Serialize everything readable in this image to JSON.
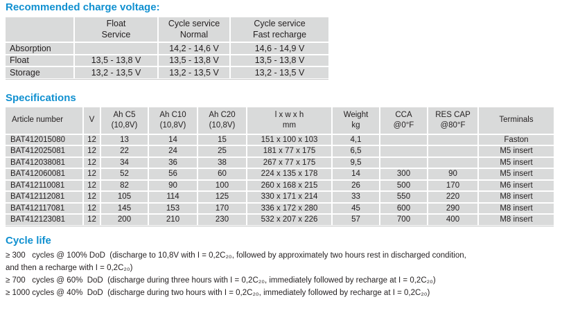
{
  "colors": {
    "accent_blue": "#1090d0",
    "table_cell_gray": "#d9dada",
    "text_ink": "#221e1f"
  },
  "charge_voltage": {
    "title": "Recommended charge voltage:",
    "headers": [
      "",
      "Float\nService",
      "Cycle service\nNormal",
      "Cycle service\nFast recharge"
    ],
    "rows": [
      [
        "Absorption",
        "",
        "14,2 - 14,6 V",
        "14,6 - 14,9 V"
      ],
      [
        "Float",
        "13,5 - 13,8 V",
        "13,5 - 13,8 V",
        "13,5 - 13,8 V"
      ],
      [
        "Storage",
        "13,2 - 13,5 V",
        "13,2 - 13,5 V",
        "13,2 - 13,5 V"
      ]
    ]
  },
  "specifications": {
    "title": "Specifications",
    "headers": [
      "Article number",
      "V",
      "Ah C5\n(10,8V)",
      "Ah C10\n(10,8V)",
      "Ah C20\n(10,8V)",
      "l x w x h\nmm",
      "Weight\nkg",
      "CCA\n@0°F",
      "RES CAP\n@80°F",
      "Terminals"
    ],
    "rows": [
      [
        "BAT412015080",
        "12",
        "13",
        "14",
        "15",
        "151 x 100 x 103",
        "4,1",
        "",
        "",
        "Faston"
      ],
      [
        "BAT412025081",
        "12",
        "22",
        "24",
        "25",
        "181 x 77 x 175",
        "6,5",
        "",
        "",
        "M5 insert"
      ],
      [
        "BAT412038081",
        "12",
        "34",
        "36",
        "38",
        "267 x 77 x 175",
        "9,5",
        "",
        "",
        "M5 insert"
      ],
      [
        "BAT412060081",
        "12",
        "52",
        "56",
        "60",
        "224 x 135 x 178",
        "14",
        "300",
        "90",
        "M5 insert"
      ],
      [
        "BAT412110081",
        "12",
        "82",
        "90",
        "100",
        "260 x 168 x 215",
        "26",
        "500",
        "170",
        "M6 insert"
      ],
      [
        "BAT412112081",
        "12",
        "105",
        "114",
        "125",
        "330 x 171 x 214",
        "33",
        "550",
        "220",
        "M8 insert"
      ],
      [
        "BAT412117081",
        "12",
        "145",
        "153",
        "170",
        "336 x 172 x 280",
        "45",
        "600",
        "290",
        "M8 insert"
      ],
      [
        "BAT412123081",
        "12",
        "200",
        "210",
        "230",
        "532 x 207 x 226",
        "57",
        "700",
        "400",
        "M8 insert"
      ]
    ]
  },
  "cycle_life": {
    "title": "Cycle life",
    "lines": [
      "≥ 300   cycles @ 100% DoD  (discharge to 10,8V with I = 0,2C₂₀, followed by approximately two hours rest in discharged condition,",
      "and then a recharge with I = 0,2C₂₀)",
      "≥ 700   cycles @ 60%  DoD  (discharge during three hours with I = 0,2C₂₀, immediately followed by recharge at I = 0,2C₂₀)",
      "≥ 1000 cycles @ 40%  DoD  (discharge during two hours with I = 0,2C₂₀, immediately followed by recharge at I = 0,2C₂₀)"
    ]
  }
}
